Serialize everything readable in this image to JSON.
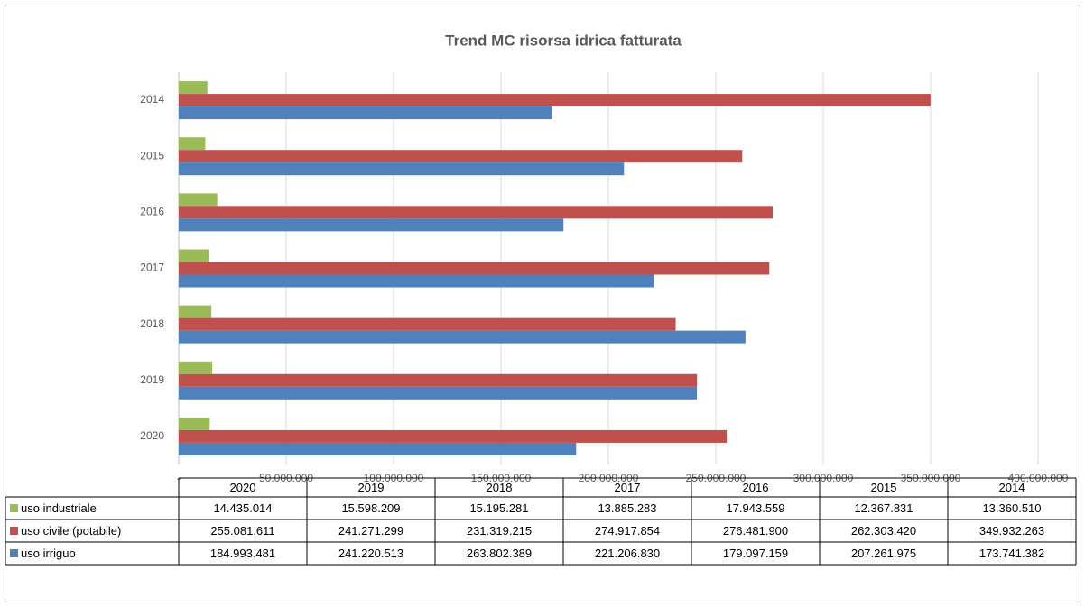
{
  "chart_data": {
    "type": "hbar",
    "title": "Trend MC  risorsa idrica fatturata",
    "categories": [
      "2020",
      "2019",
      "2018",
      "2017",
      "2016",
      "2015",
      "2014"
    ],
    "series": [
      {
        "name": "uso industriale",
        "color": "#9bbb59",
        "values": [
          14435014,
          15598209,
          15195281,
          13885283,
          17943559,
          12367831,
          13360510
        ],
        "value_labels": [
          "14.435.014",
          "15.598.209",
          "15.195.281",
          "13.885.283",
          "17.943.559",
          "12.367.831",
          "13.360.510"
        ]
      },
      {
        "name": "uso civile (potabile)",
        "color": "#c0504d",
        "values": [
          255081611,
          241271299,
          231319215,
          274917854,
          276481900,
          262303420,
          349932263
        ],
        "value_labels": [
          "255.081.611",
          "241.271.299",
          "231.319.215",
          "274.917.854",
          "276.481.900",
          "262.303.420",
          "349.932.263"
        ]
      },
      {
        "name": "uso irriguo",
        "color": "#4f81bd",
        "values": [
          184993481,
          241220513,
          263802389,
          221206830,
          179097159,
          207261975,
          173741382
        ],
        "value_labels": [
          "184.993.481",
          "241.220.513",
          "263.802.389",
          "221.206.830",
          "179.097.159",
          "207.261.975",
          "173.741.382"
        ]
      }
    ],
    "xlim": [
      0,
      400000000
    ],
    "xticks": [
      {
        "value": 0,
        "label": "-"
      },
      {
        "value": 50000000,
        "label": "50.000.000"
      },
      {
        "value": 100000000,
        "label": "100.000.000"
      },
      {
        "value": 150000000,
        "label": "150.000.000"
      },
      {
        "value": 200000000,
        "label": "200.000.000"
      },
      {
        "value": 250000000,
        "label": "250.000.000"
      },
      {
        "value": 300000000,
        "label": "300.000.000"
      },
      {
        "value": 350000000,
        "label": "350.000.000"
      },
      {
        "value": 400000000,
        "label": "400.000.000"
      }
    ],
    "grid": true
  }
}
